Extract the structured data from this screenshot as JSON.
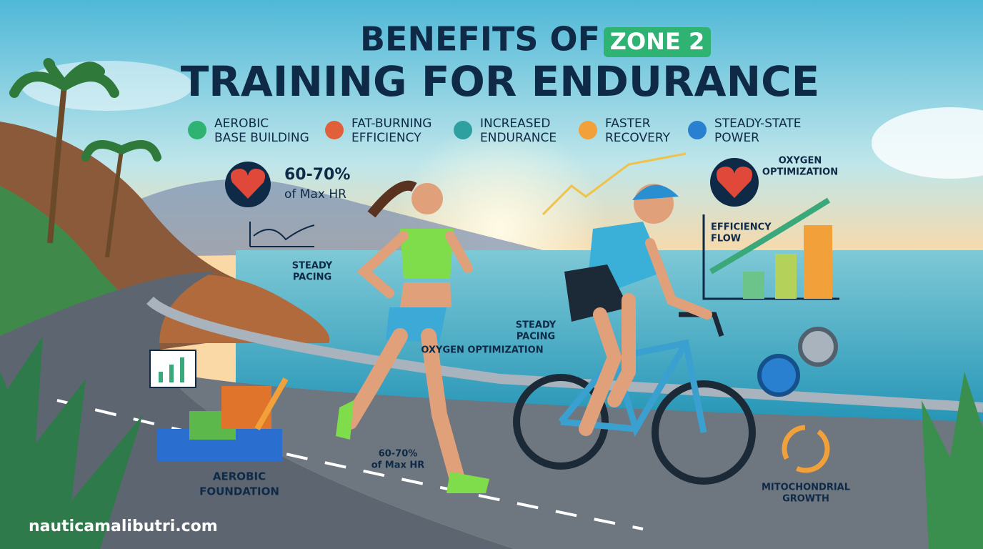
{
  "title": {
    "line1": "BENEFITS OF",
    "badge": "ZONE 2",
    "line2": "TRAINING FOR ENDURANCE"
  },
  "benefits": [
    {
      "lines": [
        "AEROBIC",
        "BASE BUILDING"
      ]
    },
    {
      "lines": [
        "FAT-BURNING",
        "EFFICIENCY"
      ]
    },
    {
      "lines": [
        "INCREASED",
        "ENDURANCE"
      ]
    },
    {
      "lines": [
        "FASTER",
        "RECOVERY"
      ]
    },
    {
      "lines": [
        "STEADY-STATE",
        "POWER"
      ]
    }
  ],
  "heart_badge": {
    "value": "60-70%",
    "caption": "of Max HR"
  },
  "labels": [
    {
      "lines": [
        "OXYGEN",
        "OPTIMIZATION"
      ]
    },
    {
      "lines": [
        "STEADY",
        "PACING"
      ]
    },
    {
      "lines": [
        "EFFICIENCY",
        "FLOW"
      ]
    },
    {
      "lines": [
        "STEADY",
        "PACING"
      ]
    },
    {
      "lines": [
        "OXYGEN OPTIMIZATION"
      ]
    },
    {
      "lines": [
        "60-70%",
        "of Max HR"
      ]
    },
    {
      "lines": [
        "AEROBIC",
        "FOUNDATION"
      ]
    },
    {
      "lines": [
        "MITOCHONDRIAL",
        "GROWTH"
      ]
    }
  ],
  "footer": "nauticamalibutri.com"
}
